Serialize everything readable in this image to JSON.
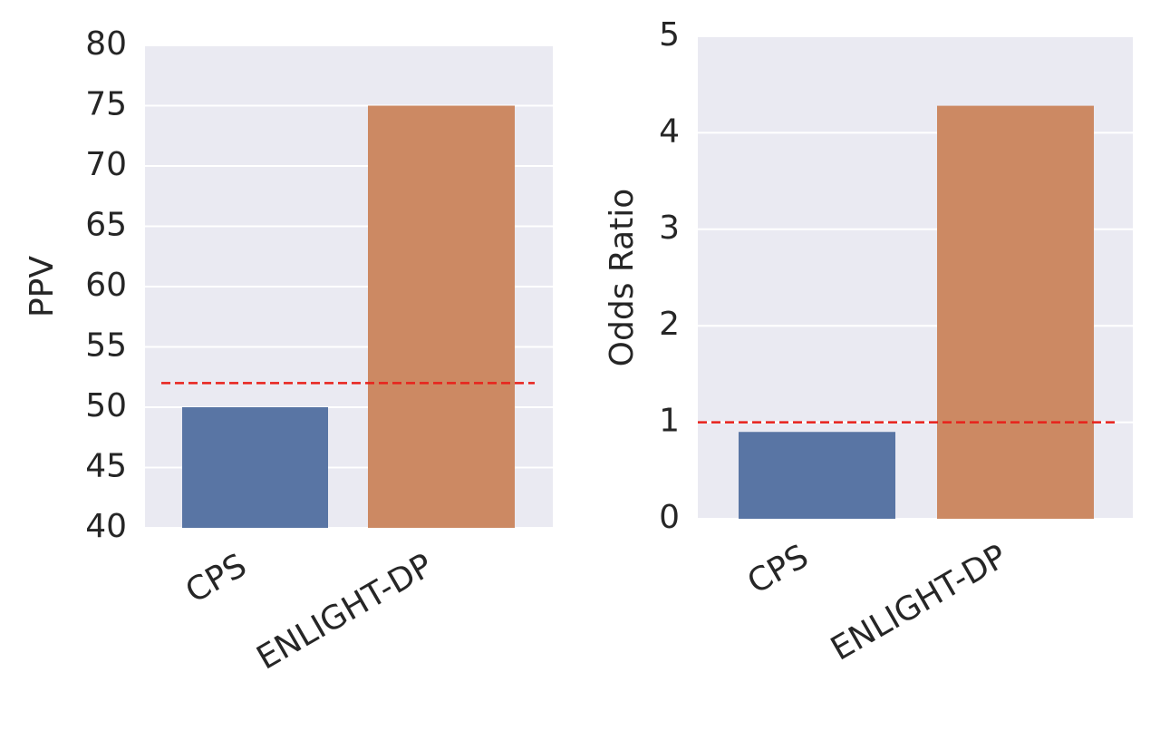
{
  "chart_data": [
    {
      "type": "bar",
      "y_label": "PPV",
      "categories": [
        "CPS",
        "ENLIGHT-DP"
      ],
      "values": [
        50,
        75
      ],
      "colors": [
        "#5975a4",
        "#cc8963"
      ],
      "ylim": [
        40,
        80
      ],
      "yticks": [
        40,
        45,
        50,
        55,
        60,
        65,
        70,
        75,
        80
      ],
      "grid": true,
      "reference_line": 52,
      "reference_color": "#e8211b"
    },
    {
      "type": "bar",
      "y_label": "Odds Ratio",
      "categories": [
        "CPS",
        "ENLIGHT-DP"
      ],
      "values": [
        0.9,
        4.28
      ],
      "colors": [
        "#5975a4",
        "#cc8963"
      ],
      "ylim": [
        0,
        5
      ],
      "yticks": [
        0,
        1,
        2,
        3,
        4,
        5
      ],
      "grid": true,
      "reference_line": 1,
      "reference_color": "#e8211b"
    }
  ]
}
